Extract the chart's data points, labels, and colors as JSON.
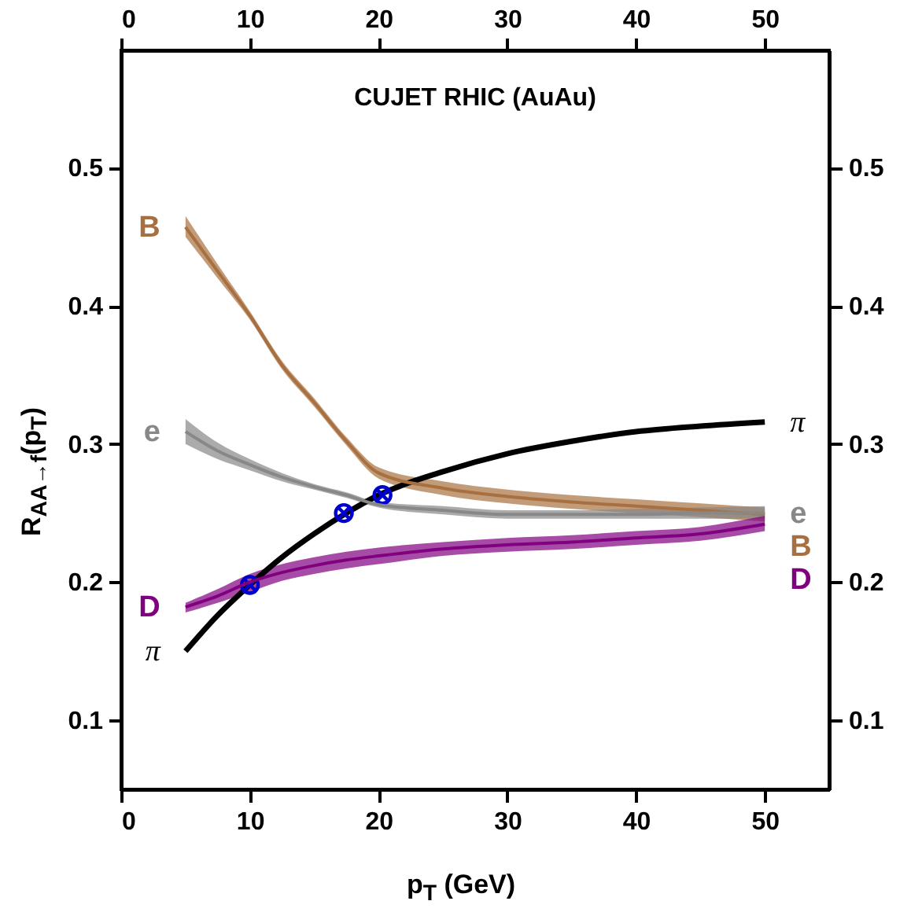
{
  "chart_data": {
    "type": "line",
    "title": "CUJET RHIC (AuAu)",
    "xlabel": "p$_{T}$ (GeV)",
    "ylabel": "R$_{AA→f}$(p$_{T}$)",
    "xlim": [
      0,
      55
    ],
    "xticks": [
      0,
      10,
      20,
      30,
      40,
      50
    ],
    "ylim": [
      0.05,
      0.585
    ],
    "yticks": [
      0.1,
      0.2,
      0.3,
      0.4,
      0.5
    ],
    "x2lim": [
      0,
      55
    ],
    "x2ticks": [
      0,
      10,
      20,
      30,
      40,
      50
    ],
    "y2lim": [
      0.05,
      0.585
    ],
    "y2ticks": [
      0.1,
      0.2,
      0.3,
      0.4,
      0.5
    ],
    "grid": false,
    "series": [
      {
        "name": "B",
        "color": "#a87040",
        "x": [
          5,
          7.5,
          10,
          12.5,
          15,
          17.5,
          20,
          25,
          30,
          35,
          40,
          45,
          50
        ],
        "values": [
          0.457,
          0.425,
          0.393,
          0.357,
          0.33,
          0.302,
          0.279,
          0.268,
          0.262,
          0.258,
          0.255,
          0.252,
          0.249
        ],
        "lower": [
          0.45,
          0.42,
          0.39,
          0.354,
          0.327,
          0.299,
          0.275,
          0.263,
          0.257,
          0.253,
          0.25,
          0.247,
          0.244
        ],
        "upper": [
          0.465,
          0.43,
          0.396,
          0.36,
          0.333,
          0.305,
          0.283,
          0.273,
          0.267,
          0.263,
          0.26,
          0.257,
          0.254
        ]
      },
      {
        "name": "e",
        "color": "#888888",
        "x": [
          5,
          7.5,
          10,
          12.5,
          15,
          17.5,
          20,
          25,
          30,
          35,
          40,
          45,
          50
        ],
        "values": [
          0.309,
          0.295,
          0.285,
          0.276,
          0.269,
          0.263,
          0.256,
          0.252,
          0.249,
          0.249,
          0.249,
          0.25,
          0.25
        ],
        "lower": [
          0.3,
          0.289,
          0.281,
          0.273,
          0.267,
          0.261,
          0.254,
          0.249,
          0.246,
          0.246,
          0.246,
          0.246,
          0.246
        ],
        "upper": [
          0.318,
          0.301,
          0.289,
          0.279,
          0.271,
          0.265,
          0.258,
          0.255,
          0.252,
          0.252,
          0.253,
          0.254,
          0.255
        ]
      },
      {
        "name": "D",
        "color": "#800080",
        "x": [
          5,
          7.5,
          10,
          12.5,
          15,
          17.5,
          20,
          25,
          30,
          35,
          40,
          45,
          50
        ],
        "values": [
          0.182,
          0.19,
          0.2,
          0.207,
          0.212,
          0.216,
          0.219,
          0.224,
          0.227,
          0.229,
          0.232,
          0.235,
          0.242
        ],
        "lower": [
          0.178,
          0.185,
          0.193,
          0.201,
          0.206,
          0.21,
          0.213,
          0.219,
          0.222,
          0.224,
          0.227,
          0.23,
          0.237
        ],
        "upper": [
          0.185,
          0.195,
          0.206,
          0.213,
          0.218,
          0.222,
          0.225,
          0.229,
          0.232,
          0.234,
          0.237,
          0.24,
          0.248
        ]
      },
      {
        "name": "π",
        "color": "#000000",
        "x": [
          5,
          7.5,
          10,
          12.5,
          15,
          17.5,
          20,
          25,
          30,
          35,
          40,
          45,
          50
        ],
        "values": [
          0.15,
          0.176,
          0.198,
          0.218,
          0.235,
          0.25,
          0.263,
          0.28,
          0.293,
          0.302,
          0.309,
          0.313,
          0.316
        ]
      },
      {
        "type": "scatter",
        "marker": "cross",
        "color": "#0000cc",
        "x": [
          10,
          17.3,
          20.3
        ],
        "values": [
          0.198,
          0.25,
          0.263
        ]
      }
    ]
  }
}
